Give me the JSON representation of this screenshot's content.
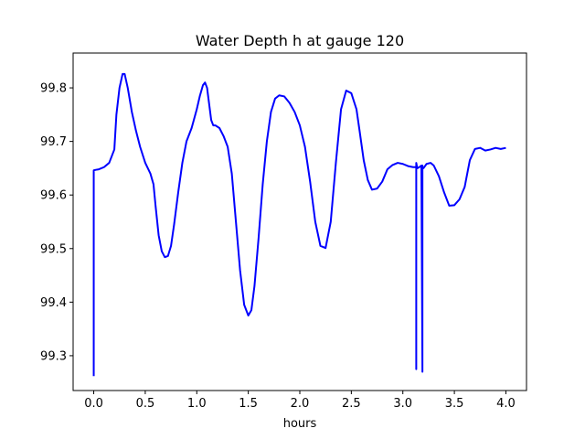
{
  "chart_data": {
    "type": "line",
    "title": "Water Depth h at gauge 120",
    "xlabel": "hours",
    "ylabel": "",
    "xlim": [
      -0.2,
      4.2
    ],
    "ylim": [
      99.235,
      99.865
    ],
    "xticks": [
      0.0,
      0.5,
      1.0,
      1.5,
      2.0,
      2.5,
      3.0,
      3.5,
      4.0
    ],
    "xtick_labels": [
      "0.0",
      "0.5",
      "1.0",
      "1.5",
      "2.0",
      "2.5",
      "3.0",
      "3.5",
      "4.0"
    ],
    "yticks": [
      99.3,
      99.4,
      99.5,
      99.6,
      99.7,
      99.8
    ],
    "ytick_labels": [
      "99.3",
      "99.4",
      "99.5",
      "99.6",
      "99.7",
      "99.8"
    ],
    "grid": false,
    "legend": "none",
    "series": [
      {
        "color": "#0000ff",
        "x": [
          0.0,
          0.0,
          0.0,
          0.02,
          0.05,
          0.1,
          0.15,
          0.2,
          0.22,
          0.25,
          0.28,
          0.3,
          0.33,
          0.37,
          0.41,
          0.45,
          0.5,
          0.55,
          0.58,
          0.6,
          0.63,
          0.66,
          0.69,
          0.72,
          0.75,
          0.78,
          0.82,
          0.86,
          0.9,
          0.95,
          1.0,
          1.03,
          1.06,
          1.08,
          1.1,
          1.12,
          1.14,
          1.16,
          1.18,
          1.22,
          1.26,
          1.3,
          1.34,
          1.38,
          1.42,
          1.46,
          1.5,
          1.53,
          1.56,
          1.6,
          1.64,
          1.68,
          1.72,
          1.76,
          1.8,
          1.85,
          1.9,
          1.95,
          2.0,
          2.05,
          2.1,
          2.15,
          2.2,
          2.25,
          2.3,
          2.35,
          2.4,
          2.45,
          2.5,
          2.55,
          2.58,
          2.62,
          2.66,
          2.7,
          2.75,
          2.8,
          2.85,
          2.9,
          2.95,
          3.0,
          3.05,
          3.1,
          3.13,
          3.13,
          3.13,
          3.14,
          3.16,
          3.18,
          3.19,
          3.19,
          3.19,
          3.2,
          3.23,
          3.27,
          3.3,
          3.35,
          3.4,
          3.45,
          3.5,
          3.55,
          3.6,
          3.65,
          3.7,
          3.75,
          3.8,
          3.85,
          3.9,
          3.95,
          4.0
        ],
        "y": [
          99.262,
          99.645,
          99.646,
          99.647,
          99.648,
          99.652,
          99.66,
          99.685,
          99.75,
          99.8,
          99.826,
          99.826,
          99.8,
          99.755,
          99.72,
          99.69,
          99.66,
          99.64,
          99.62,
          99.58,
          99.525,
          99.495,
          99.484,
          99.486,
          99.505,
          99.545,
          99.605,
          99.66,
          99.7,
          99.725,
          99.76,
          99.785,
          99.805,
          99.81,
          99.8,
          99.77,
          99.74,
          99.73,
          99.73,
          99.725,
          99.71,
          99.69,
          99.64,
          99.55,
          99.46,
          99.395,
          99.375,
          99.385,
          99.43,
          99.52,
          99.62,
          99.7,
          99.755,
          99.78,
          99.786,
          99.784,
          99.772,
          99.755,
          99.73,
          99.69,
          99.625,
          99.55,
          99.505,
          99.501,
          99.55,
          99.66,
          99.76,
          99.795,
          99.79,
          99.76,
          99.72,
          99.665,
          99.628,
          99.61,
          99.612,
          99.625,
          99.648,
          99.656,
          99.66,
          99.658,
          99.654,
          99.652,
          99.652,
          99.275,
          99.66,
          99.65,
          99.652,
          99.655,
          99.27,
          99.655,
          99.65,
          99.65,
          99.658,
          99.66,
          99.655,
          99.635,
          99.605,
          99.58,
          99.581,
          99.592,
          99.615,
          99.665,
          99.686,
          99.688,
          99.683,
          99.685,
          99.688,
          99.686,
          99.688
        ]
      }
    ]
  }
}
